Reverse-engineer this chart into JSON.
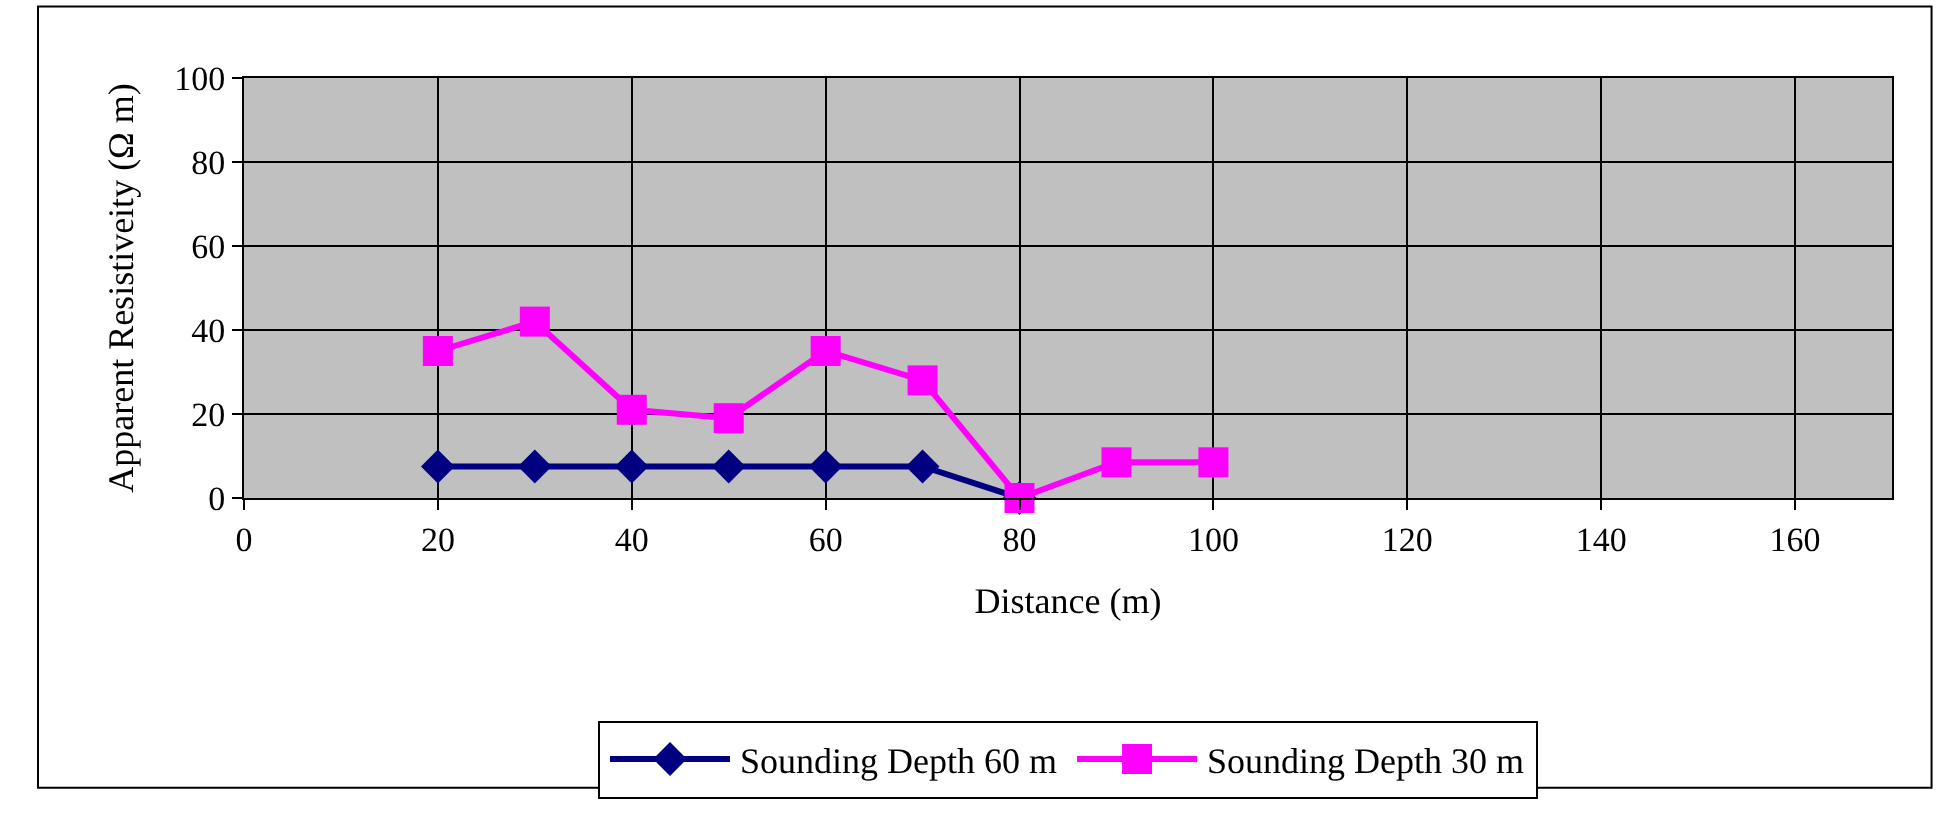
{
  "chart_data": {
    "type": "line",
    "xlabel": "Distance (m)",
    "ylabel": "Apparent Resistiveity (Ω m)",
    "xlim": [
      0,
      170
    ],
    "xticks": [
      0,
      20,
      40,
      60,
      80,
      100,
      120,
      140,
      160
    ],
    "ylim": [
      0,
      100
    ],
    "yticks": [
      0,
      20,
      40,
      60,
      80,
      100
    ],
    "grid": true,
    "legend": "bottom",
    "series": [
      {
        "name": "Sounding Depth 60 m",
        "color": "#000080",
        "marker": "diamond",
        "x": [
          20,
          30,
          40,
          50,
          60,
          70,
          80
        ],
        "values": [
          7.5,
          7.5,
          7.5,
          7.5,
          7.5,
          7.5,
          0
        ]
      },
      {
        "name": "Sounding Depth 30 m",
        "color": "#ff00ff",
        "marker": "square",
        "x": [
          20,
          30,
          40,
          50,
          60,
          70,
          80,
          90,
          100
        ],
        "values": [
          35,
          42,
          21,
          19,
          35,
          28,
          0,
          8.5,
          8.5
        ]
      }
    ]
  }
}
